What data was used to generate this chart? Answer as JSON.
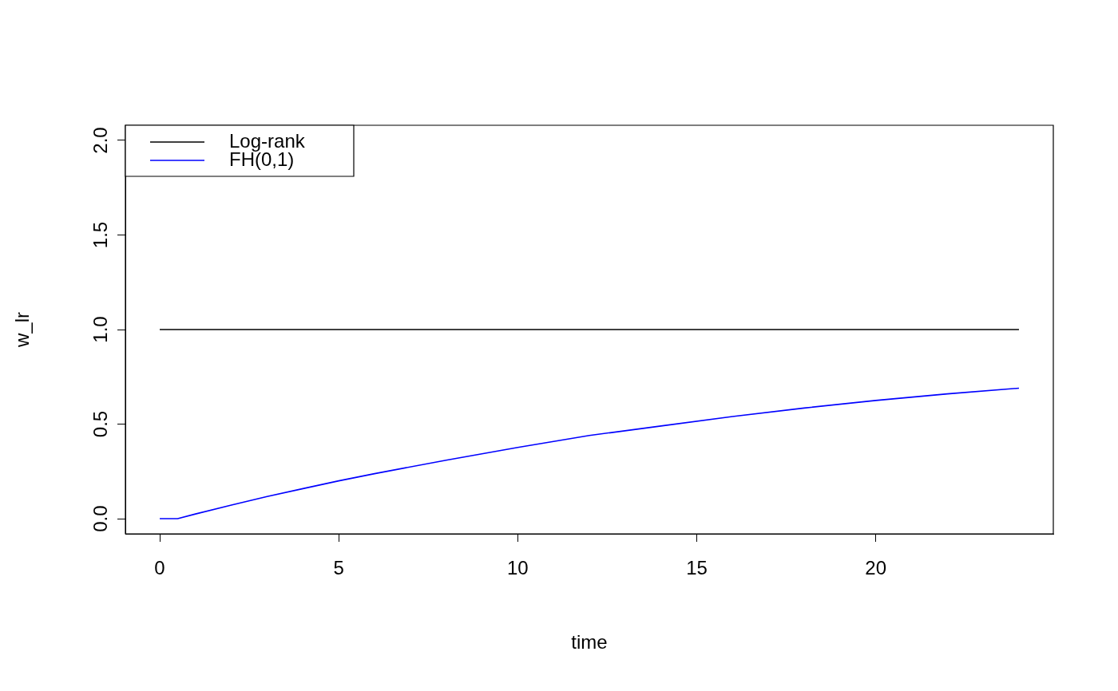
{
  "chart_data": {
    "type": "line",
    "xlabel": "time",
    "ylabel": "w_lr",
    "xlim": [
      -0.96,
      24.96
    ],
    "ylim": [
      -0.08,
      2.08
    ],
    "xticks": [
      0,
      5,
      10,
      15,
      20
    ],
    "yticks": [
      {
        "value": 0,
        "label": "0.0"
      },
      0.5,
      {
        "value": 1,
        "label": "1.0"
      },
      1.5,
      {
        "value": 2,
        "label": "2.0"
      }
    ],
    "grid": false,
    "legend": "top left",
    "marker": "none",
    "line_style": "solid",
    "series": [
      {
        "name": "Log-rank",
        "color": "#000000",
        "x": [
          0,
          24
        ],
        "values": [
          1,
          1
        ]
      },
      {
        "name": "FH(0,1)",
        "color": "#0000ff",
        "x": [
          0,
          0.5,
          1,
          2,
          3,
          4,
          5,
          6,
          8,
          10,
          12,
          14,
          16,
          18,
          20,
          22,
          24
        ],
        "values": [
          0,
          0,
          0.025,
          0.072,
          0.117,
          0.159,
          0.2,
          0.238,
          0.309,
          0.377,
          0.44,
          0.49,
          0.54,
          0.585,
          0.625,
          0.66,
          0.69
        ]
      }
    ]
  }
}
